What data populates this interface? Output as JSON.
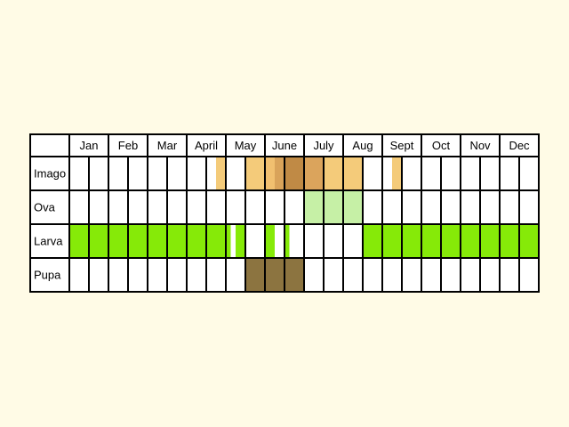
{
  "months": [
    "Jan",
    "Feb",
    "Mar",
    "April",
    "May",
    "June",
    "July",
    "Aug",
    "Sept",
    "Oct",
    "Nov",
    "Dec"
  ],
  "columns_per_month": 2,
  "colors": {
    "background": "#fffbe6",
    "grid": "#000000",
    "imago": "#f4cb7a",
    "imago_medium": "#dba45c",
    "imago_dark": "#c08a45",
    "ova": "#c6f0a6",
    "larva": "#86ea08",
    "pupa": "#8c7440"
  },
  "rows": [
    {
      "key": "imago",
      "label": "Imago",
      "fills": [
        {
          "from": 7.5,
          "to": 8.0,
          "color": "#f4cb7a"
        },
        {
          "from": 9.0,
          "to": 10.0,
          "color": "#f4cb7a"
        },
        {
          "from": 10.0,
          "to": 10.5,
          "color": "#f1c070"
        },
        {
          "from": 10.5,
          "to": 11.0,
          "color": "#d9a35a"
        },
        {
          "from": 11.0,
          "to": 12.0,
          "color": "#c08a45"
        },
        {
          "from": 12.0,
          "to": 13.0,
          "color": "#dba45c"
        },
        {
          "from": 13.0,
          "to": 15.0,
          "color": "#f4cb7a"
        },
        {
          "from": 16.5,
          "to": 17.0,
          "color": "#f4cb7a"
        }
      ]
    },
    {
      "key": "ova",
      "label": "Ova",
      "fills": [
        {
          "from": 12.0,
          "to": 15.0,
          "color": "#c6f0a6"
        }
      ]
    },
    {
      "key": "larva",
      "label": "Larva",
      "fills": [
        {
          "from": 0.0,
          "to": 8.0,
          "color": "#86ea08"
        },
        {
          "from": 8.0,
          "to": 8.25,
          "color": "#86ea08"
        },
        {
          "from": 8.5,
          "to": 9.0,
          "color": "#86ea08"
        },
        {
          "from": 10.0,
          "to": 10.5,
          "color": "#86ea08"
        },
        {
          "from": 11.0,
          "to": 11.25,
          "color": "#86ea08"
        },
        {
          "from": 15.0,
          "to": 24.0,
          "color": "#86ea08"
        }
      ]
    },
    {
      "key": "pupa",
      "label": "Pupa",
      "fills": [
        {
          "from": 9.0,
          "to": 12.0,
          "color": "#8c7440"
        }
      ]
    }
  ]
}
